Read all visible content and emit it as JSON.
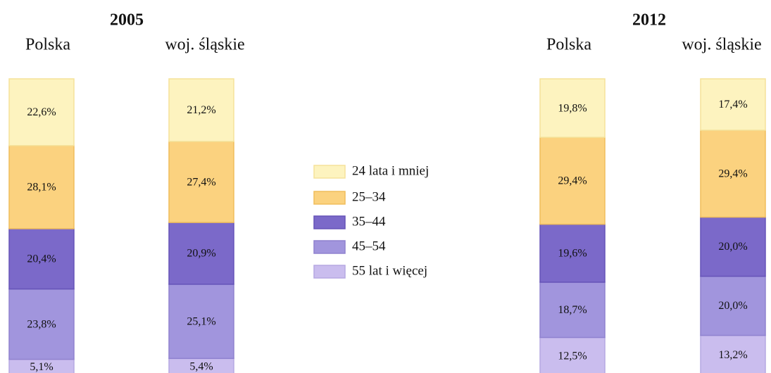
{
  "chart_data": {
    "type": "stacked_bar",
    "groups": [
      "2005",
      "2012"
    ],
    "categories": [
      "Polska",
      "woj. śląskie",
      "Polska",
      "woj. śląskie"
    ],
    "ylim": [
      0,
      100
    ],
    "series": [
      {
        "name": "24 lata i mniej",
        "color": "#fdf3bf",
        "values": [
          22.6,
          21.2,
          19.8,
          17.4
        ],
        "value_labels": [
          "22,6%",
          "21,2%",
          "19,8%",
          "17,4%"
        ]
      },
      {
        "name": "25–34",
        "color": "#fbd27f",
        "values": [
          28.1,
          27.4,
          29.4,
          29.4
        ],
        "value_labels": [
          "28,1%",
          "27,4%",
          "29,4%",
          "29,4%"
        ]
      },
      {
        "name": "35–44",
        "color": "#7b69c9",
        "values": [
          20.4,
          20.9,
          19.6,
          20.0
        ],
        "value_labels": [
          "20,4%",
          "20,9%",
          "19,6%",
          "20,0%"
        ]
      },
      {
        "name": "45–54",
        "color": "#a195dd",
        "values": [
          23.8,
          25.1,
          18.7,
          20.0
        ],
        "value_labels": [
          "23,8%",
          "25,1%",
          "18,7%",
          "20,0%"
        ]
      },
      {
        "name": "55 lat i więcej",
        "color": "#cabdee",
        "values": [
          5.1,
          5.4,
          12.5,
          13.2
        ],
        "value_labels": [
          "5,1%",
          "5,4%",
          "12,5%",
          "13,2%"
        ]
      }
    ]
  }
}
